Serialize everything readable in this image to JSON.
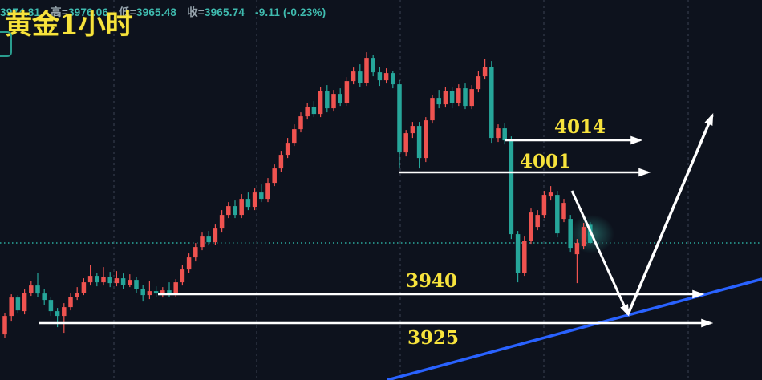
{
  "header": {
    "title": "黄金1小时",
    "ohlc": {
      "open_value": "3974.81",
      "high_label": "高=",
      "high_value": "3976.06",
      "low_label": "低=",
      "low_value": "3965.48",
      "close_label": "收=",
      "close_value": "3965.74",
      "change": "-9.11 (-0.23%)"
    }
  },
  "chart_data": {
    "type": "candlestick",
    "title": "黄金1小时",
    "timeframe": "1小时",
    "current_price": 3965.74,
    "price_axis_range": [
      3918,
      4062
    ],
    "grid": "vertical-dashed",
    "legend_position": "none",
    "price_levels": [
      {
        "label": "4014",
        "price": 4014
      },
      {
        "label": "4001",
        "price": 4001
      },
      {
        "label": "3940",
        "price": 3940
      },
      {
        "label": "3925",
        "price": 3925
      }
    ],
    "annotations": {
      "projection": "V-shaped white arrow pointing down to blue trendline then up",
      "trendline": "blue ascending support line"
    },
    "colors": {
      "up": "#ef5350",
      "down": "#26a69a",
      "background": "#0d121d",
      "trendline": "#2962ff",
      "arrow": "#ffffff",
      "level_label": "#f7e33c",
      "grid": "#3a4354",
      "price_line": "#2ba99d"
    },
    "candles_ohlc": [
      [
        3920.1,
        3930.9,
        3918.5,
        3929.3
      ],
      [
        3929.3,
        3940.1,
        3926.5,
        3938.5
      ],
      [
        3938.5,
        3939.7,
        3930.5,
        3932.1
      ],
      [
        3931.7,
        3942.5,
        3930.1,
        3940.9
      ],
      [
        3940.9,
        3946.9,
        3939.3,
        3944.5
      ],
      [
        3944.5,
        3950.9,
        3938.9,
        3940.5
      ],
      [
        3940.5,
        3942.9,
        3934.9,
        3937.3
      ],
      [
        3937.3,
        3938.9,
        3929.3,
        3931.7
      ],
      [
        3931.7,
        3933.3,
        3923.7,
        3929.3
      ],
      [
        3929.3,
        3935.7,
        3920.9,
        3933.7
      ],
      [
        3933.7,
        3940.5,
        3932.1,
        3938.9
      ],
      [
        3938.9,
        3943.7,
        3937.3,
        3940.9
      ],
      [
        3940.9,
        3948.1,
        3939.7,
        3946.1
      ],
      [
        3946.1,
        3954.9,
        3944.5,
        3949.3
      ],
      [
        3949.3,
        3950.9,
        3944.1,
        3946.1
      ],
      [
        3946.1,
        3953.7,
        3944.5,
        3948.9
      ],
      [
        3948.9,
        3951.3,
        3943.7,
        3945.7
      ],
      [
        3945.7,
        3951.7,
        3944.1,
        3948.1
      ],
      [
        3948.1,
        3950.5,
        3942.9,
        3944.9
      ],
      [
        3944.9,
        3950.1,
        3943.7,
        3947.3
      ],
      [
        3947.3,
        3948.9,
        3940.9,
        3942.9
      ],
      [
        3942.9,
        3944.9,
        3936.5,
        3939.7
      ],
      [
        3939.7,
        3946.9,
        3937.7,
        3941.7
      ],
      [
        3941.7,
        3944.1,
        3938.9,
        3940.5
      ],
      [
        3940.5,
        3943.7,
        3938.5,
        3942.1
      ],
      [
        3942.1,
        3946.1,
        3938.9,
        3940.5
      ],
      [
        3940.5,
        3947.7,
        3938.9,
        3946.1
      ],
      [
        3946.1,
        3954.9,
        3944.5,
        3952.5
      ],
      [
        3952.5,
        3960.5,
        3950.9,
        3958.5
      ],
      [
        3958.5,
        3965.7,
        3956.5,
        3963.7
      ],
      [
        3963.7,
        3970.9,
        3962.1,
        3968.9
      ],
      [
        3968.9,
        3971.7,
        3964.5,
        3966.1
      ],
      [
        3966.1,
        3974.9,
        3964.9,
        3972.9
      ],
      [
        3972.9,
        3982.1,
        3970.9,
        3979.7
      ],
      [
        3979.7,
        3986.1,
        3978.1,
        3984.1
      ],
      [
        3984.1,
        3986.9,
        3978.1,
        3979.7
      ],
      [
        3979.7,
        3990.1,
        3978.1,
        3987.7
      ],
      [
        3987.7,
        3990.9,
        3982.1,
        3983.7
      ],
      [
        3983.7,
        3992.9,
        3982.1,
        3990.9
      ],
      [
        3990.9,
        3994.9,
        3986.1,
        3987.7
      ],
      [
        3987.7,
        3998.1,
        3986.1,
        3995.7
      ],
      [
        3995.7,
        4004.9,
        3994.1,
        4002.9
      ],
      [
        4002.9,
        4011.7,
        4001.3,
        4009.7
      ],
      [
        4009.7,
        4018.1,
        4008.1,
        4015.7
      ],
      [
        4015.7,
        4024.9,
        4014.1,
        4022.5
      ],
      [
        4022.5,
        4030.9,
        4020.9,
        4028.9
      ],
      [
        4028.9,
        4035.7,
        4027.3,
        4033.7
      ],
      [
        4033.7,
        4036.5,
        4028.5,
        4030.1
      ],
      [
        4030.1,
        4043.7,
        4028.5,
        4041.7
      ],
      [
        4041.7,
        4044.5,
        4030.9,
        4032.9
      ],
      [
        4032.9,
        4042.1,
        4031.3,
        4040.1
      ],
      [
        4040.1,
        4042.9,
        4034.1,
        4035.7
      ],
      [
        4035.7,
        4048.5,
        4034.1,
        4046.5
      ],
      [
        4046.5,
        4053.3,
        4044.9,
        4051.3
      ],
      [
        4051.3,
        4054.9,
        4043.7,
        4045.7
      ],
      [
        4045.7,
        4060.9,
        4044.1,
        4058.1
      ],
      [
        4058.1,
        4059.7,
        4048.9,
        4050.9
      ],
      [
        4050.9,
        4053.7,
        4044.1,
        4046.9
      ],
      [
        4046.9,
        4052.9,
        4045.3,
        4050.5
      ],
      [
        4050.5,
        4051.7,
        4042.9,
        4044.9
      ],
      [
        4044.9,
        4046.9,
        4002.9,
        4010.9
      ],
      [
        4010.9,
        4022.1,
        4008.9,
        4020.5
      ],
      [
        4020.5,
        4026.1,
        4018.1,
        4024.1
      ],
      [
        4024.1,
        4026.1,
        4002.9,
        4008.1
      ],
      [
        4008.1,
        4028.5,
        4006.1,
        4026.9
      ],
      [
        4026.9,
        4039.7,
        4025.3,
        4038.1
      ],
      [
        4038.1,
        4042.1,
        4032.9,
        4034.9
      ],
      [
        4034.9,
        4043.7,
        4033.3,
        4041.7
      ],
      [
        4041.7,
        4043.7,
        4032.9,
        4035.7
      ],
      [
        4035.7,
        4044.9,
        4034.1,
        4042.9
      ],
      [
        4042.9,
        4045.3,
        4032.5,
        4034.1
      ],
      [
        4034.1,
        4044.5,
        4032.5,
        4042.5
      ],
      [
        4042.5,
        4051.7,
        4040.9,
        4048.9
      ],
      [
        4048.9,
        4057.7,
        4047.3,
        4053.7
      ],
      [
        4053.7,
        4056.5,
        4015.7,
        4018.1
      ],
      [
        4018.1,
        4024.9,
        4016.1,
        4022.9
      ],
      [
        4022.9,
        4025.3,
        4014.9,
        4016.9
      ],
      [
        4016.9,
        4018.9,
        3967.7,
        3970.1
      ],
      [
        3970.1,
        3971.7,
        3946.1,
        3950.9
      ],
      [
        3950.9,
        3968.9,
        3949.3,
        3966.9
      ],
      [
        3966.9,
        3982.9,
        3965.3,
        3980.9
      ],
      [
        3973.7,
        3982.1,
        3972.1,
        3979.7
      ],
      [
        3979.7,
        3991.7,
        3978.1,
        3989.7
      ],
      [
        3988.9,
        3994.1,
        3986.9,
        3990.9
      ],
      [
        3989.7,
        3991.7,
        3968.5,
        3970.5
      ],
      [
        3977.7,
        3987.7,
        3976.1,
        3985.7
      ],
      [
        3977.7,
        3979.7,
        3961.3,
        3963.3
      ],
      [
        3960.1,
        3967.7,
        3945.7,
        3965.7
      ],
      [
        3964.1,
        3975.7,
        3962.5,
        3973.7
      ],
      [
        3974.81,
        3976.06,
        3965.48,
        3965.74
      ]
    ]
  }
}
